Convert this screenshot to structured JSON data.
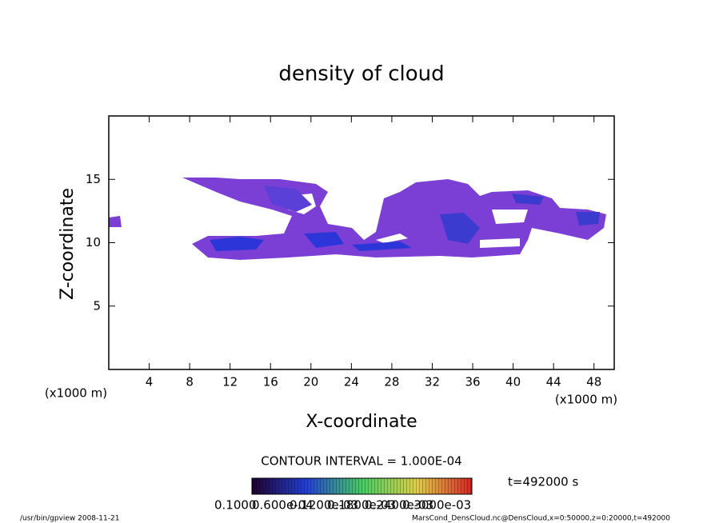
{
  "chart_data": {
    "type": "contour",
    "title": "density of cloud",
    "x_label": "X-coordinate",
    "y_label": "Z-coordinate",
    "x_unit": "(x1000 m)",
    "y_unit": "(x1000 m)",
    "xlim": [
      0,
      50
    ],
    "ylim": [
      0,
      20
    ],
    "xticks": [
      4,
      8,
      12,
      16,
      20,
      24,
      28,
      32,
      36,
      40,
      44,
      48
    ],
    "yticks": [
      5,
      10,
      15
    ],
    "contour_interval": "CONTOUR INTERVAL = 1.000E-04",
    "time_label": "t=492000 s",
    "colorbar_labels": [
      "0.1000",
      "0.600e-04",
      "0.1200e-03",
      "0.1800e-03",
      "0.2400e-03",
      "0.3000e-03"
    ],
    "footer_left": "/usr/bin/gpview   2008-11-21",
    "footer_right": "MarsCond_DensCloud.nc@DensCloud,x=0:50000,z=0:20000,t=492000"
  }
}
